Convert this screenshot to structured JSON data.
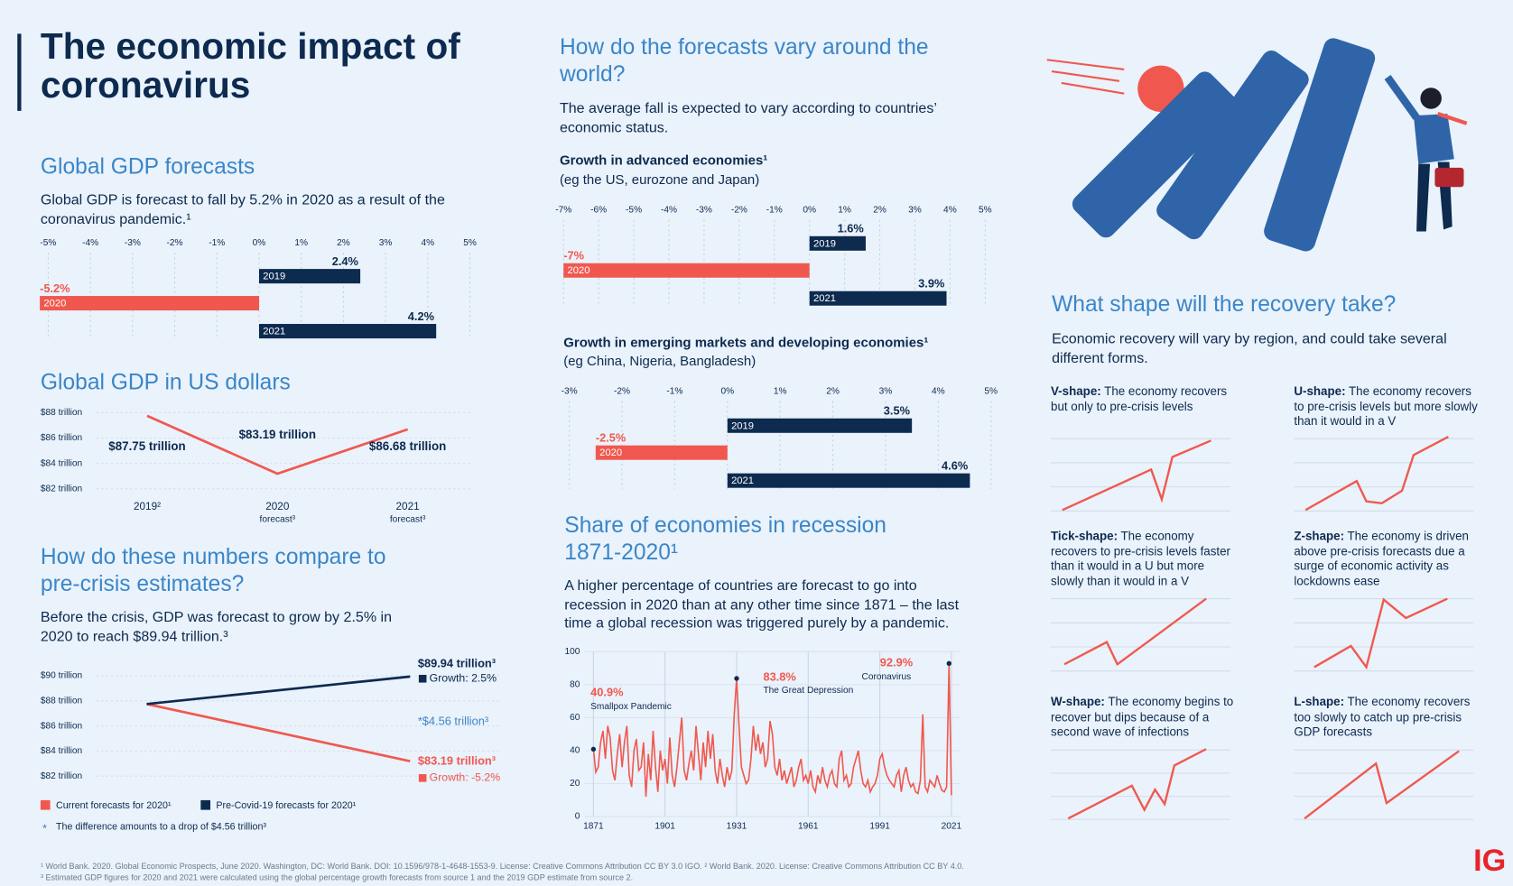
{
  "title": "The economic impact of coronavirus",
  "world_section": {
    "heading": "How do the forecasts vary around the world?",
    "text": "The average fall is expected to vary according to countries’ economic status."
  },
  "chart_data": [
    {
      "type": "hbar",
      "title": "Global GDP forecasts",
      "subtitle": "Global GDP is forecast to fall by 5.2% in 2020 as a result of the coronavirus pandemic.¹",
      "categories": [
        "2019",
        "2020",
        "2021"
      ],
      "values": [
        2.4,
        -5.2,
        4.2
      ],
      "value_labels": [
        "2.4%",
        "-5.2%",
        "4.2%"
      ],
      "colors": [
        "#0d2a4f",
        "#f0584f",
        "#0d2a4f"
      ],
      "xlim": [
        -5,
        5
      ],
      "xticks": [
        {
          "value": -5,
          "label": "-5%"
        },
        {
          "value": -4,
          "label": "-4%"
        },
        {
          "value": -3,
          "label": "-3%"
        },
        {
          "value": -2,
          "label": "-2%"
        },
        {
          "value": -1,
          "label": "-1%"
        },
        {
          "value": 0,
          "label": "0%"
        },
        {
          "value": 1,
          "label": "1%"
        },
        {
          "value": 2,
          "label": "2%"
        },
        {
          "value": 3,
          "label": "3%"
        },
        {
          "value": 4,
          "label": "4%"
        },
        {
          "value": 5,
          "label": "5%"
        }
      ],
      "grid": true
    },
    {
      "type": "hbar",
      "title": "Growth in advanced economies¹",
      "subtitle": "(eg the US, eurozone and Japan)",
      "categories": [
        "2019",
        "2020",
        "2021"
      ],
      "values": [
        1.6,
        -7,
        3.9
      ],
      "value_labels": [
        "1.6%",
        "-7%",
        "3.9%"
      ],
      "colors": [
        "#0d2a4f",
        "#f0584f",
        "#0d2a4f"
      ],
      "xlim": [
        -7,
        5
      ],
      "xticks": [
        {
          "value": -7,
          "label": "-7%"
        },
        {
          "value": -6,
          "label": "-6%"
        },
        {
          "value": -5,
          "label": "-5%"
        },
        {
          "value": -4,
          "label": "-4%"
        },
        {
          "value": -3,
          "label": "-3%"
        },
        {
          "value": -2,
          "label": "-2%"
        },
        {
          "value": -1,
          "label": "-1%"
        },
        {
          "value": 0,
          "label": "0%"
        },
        {
          "value": 1,
          "label": "1%"
        },
        {
          "value": 2,
          "label": "2%"
        },
        {
          "value": 3,
          "label": "3%"
        },
        {
          "value": 4,
          "label": "4%"
        },
        {
          "value": 5,
          "label": "5%"
        }
      ],
      "grid": true
    },
    {
      "type": "hbar",
      "title": "Growth in emerging markets and developing economies¹",
      "subtitle": "(eg China, Nigeria, Bangladesh)",
      "categories": [
        "2019",
        "2020",
        "2021"
      ],
      "values": [
        3.5,
        -2.5,
        4.6
      ],
      "value_labels": [
        "3.5%",
        "-2.5%",
        "4.6%"
      ],
      "colors": [
        "#0d2a4f",
        "#f0584f",
        "#0d2a4f"
      ],
      "xlim": [
        -3,
        5
      ],
      "xticks": [
        {
          "value": -3,
          "label": "-3%"
        },
        {
          "value": -2,
          "label": "-2%"
        },
        {
          "value": -1,
          "label": "-1%"
        },
        {
          "value": 0,
          "label": "0%"
        },
        {
          "value": 1,
          "label": "1%"
        },
        {
          "value": 2,
          "label": "2%"
        },
        {
          "value": 3,
          "label": "3%"
        },
        {
          "value": 4,
          "label": "4%"
        },
        {
          "value": 5,
          "label": "5%"
        }
      ],
      "grid": true
    },
    {
      "type": "line",
      "title": "Global GDP in US dollars",
      "categories": [
        [
          "2019²"
        ],
        [
          "2020",
          "forecast³"
        ],
        [
          "2021",
          "forecast³"
        ]
      ],
      "values": [
        87.75,
        83.19,
        86.68
      ],
      "value_labels": [
        "$87.75 trillion",
        "$83.19 trillion",
        "$86.68 trillion"
      ],
      "color": "#f0584f",
      "ylim": [
        82,
        88
      ],
      "yticks": [
        {
          "value": 82,
          "label": "$82 trillion"
        },
        {
          "value": 84,
          "label": "$84 trillion"
        },
        {
          "value": 86,
          "label": "$86 trillion"
        },
        {
          "value": 88,
          "label": "$88 trillion"
        }
      ],
      "grid": true
    },
    {
      "type": "compare",
      "title": "How do these numbers compare to pre-crisis estimates?",
      "subtitle": "Before the crisis, GDP was forecast to grow by 2.5% in 2020 to reach $89.94 trillion.³",
      "series": [
        {
          "name": "Current forecasts for 2020¹",
          "color": "#f0584f",
          "values": [
            87.75,
            83.19
          ]
        },
        {
          "name": "Pre-Covid-19 forecasts for 2020¹",
          "color": "#0d2a4f",
          "values": [
            87.75,
            89.94
          ]
        }
      ],
      "annotations": [
        "$89.94 trillion³",
        "Growth: 2.5%",
        "*$4.56 trillion³",
        "$83.19 trillion³",
        "Growth: -5.2%"
      ],
      "note_marker": "*",
      "note": "The difference amounts to a drop of $4.56 trillion³",
      "ylim": [
        82,
        90
      ],
      "yticks": [
        {
          "value": 82,
          "label": "$82 trillion"
        },
        {
          "value": 84,
          "label": "$84 trillion"
        },
        {
          "value": 86,
          "label": "$86 trillion"
        },
        {
          "value": 88,
          "label": "$88 trillion"
        },
        {
          "value": 90,
          "label": "$90 trillion"
        }
      ],
      "grid": true
    },
    {
      "type": "timeline",
      "title": "Share of economies in recession 1871-2020¹",
      "subtitle": "A higher percentage of countries are forecast to go into recession in 2020 than at any other time since 1871 – the last time a global recession was triggered purely by a pandemic.",
      "color": "#f0584f",
      "x": [
        1871,
        1872,
        1873,
        1874,
        1875,
        1876,
        1877,
        1878,
        1879,
        1880,
        1881,
        1882,
        1883,
        1884,
        1885,
        1886,
        1887,
        1888,
        1889,
        1890,
        1891,
        1892,
        1893,
        1894,
        1895,
        1896,
        1897,
        1898,
        1899,
        1900,
        1901,
        1902,
        1903,
        1904,
        1905,
        1906,
        1907,
        1908,
        1909,
        1910,
        1911,
        1912,
        1913,
        1914,
        1915,
        1916,
        1917,
        1918,
        1919,
        1920,
        1921,
        1922,
        1923,
        1924,
        1925,
        1926,
        1927,
        1928,
        1929,
        1930,
        1931,
        1932,
        1933,
        1934,
        1935,
        1936,
        1937,
        1938,
        1939,
        1940,
        1941,
        1942,
        1943,
        1944,
        1945,
        1946,
        1947,
        1948,
        1949,
        1950,
        1951,
        1952,
        1953,
        1954,
        1955,
        1956,
        1957,
        1958,
        1959,
        1960,
        1961,
        1962,
        1963,
        1964,
        1965,
        1966,
        1967,
        1968,
        1969,
        1970,
        1971,
        1972,
        1973,
        1974,
        1975,
        1976,
        1977,
        1978,
        1979,
        1980,
        1981,
        1982,
        1983,
        1984,
        1985,
        1986,
        1987,
        1988,
        1989,
        1990,
        1991,
        1992,
        1993,
        1994,
        1995,
        1996,
        1997,
        1998,
        1999,
        2000,
        2001,
        2002,
        2003,
        2004,
        2005,
        2006,
        2007,
        2008,
        2009,
        2010,
        2011,
        2012,
        2013,
        2014,
        2015,
        2016,
        2017,
        2018,
        2019,
        2020,
        2021
      ],
      "values": [
        40.9,
        27,
        30,
        45,
        52,
        35,
        55,
        48,
        28,
        22,
        38,
        50,
        30,
        45,
        55,
        25,
        18,
        40,
        47,
        28,
        30,
        45,
        12,
        38,
        22,
        52,
        30,
        15,
        40,
        28,
        35,
        20,
        48,
        25,
        18,
        30,
        45,
        60,
        28,
        22,
        32,
        40,
        28,
        55,
        38,
        22,
        45,
        30,
        52,
        35,
        50,
        28,
        20,
        35,
        25,
        18,
        30,
        22,
        28,
        62,
        83.8,
        55,
        30,
        25,
        20,
        22,
        35,
        55,
        40,
        50,
        38,
        45,
        30,
        35,
        58,
        50,
        30,
        25,
        35,
        22,
        28,
        20,
        25,
        30,
        18,
        22,
        30,
        35,
        22,
        25,
        20,
        28,
        18,
        15,
        25,
        20,
        30,
        22,
        18,
        25,
        28,
        20,
        18,
        35,
        40,
        22,
        25,
        18,
        20,
        30,
        35,
        40,
        28,
        20,
        18,
        22,
        15,
        18,
        20,
        25,
        35,
        38,
        30,
        25,
        22,
        20,
        18,
        25,
        28,
        15,
        25,
        30,
        22,
        18,
        20,
        15,
        14,
        22,
        62,
        18,
        15,
        22,
        20,
        18,
        25,
        20,
        16,
        15,
        18,
        92.9,
        13
      ],
      "annotations": [
        {
          "value_label": "40.9%",
          "text": "Smallpox Pandemic"
        },
        {
          "value_label": "83.8%",
          "text": "The Great Depression"
        },
        {
          "value_label": "92.9%",
          "text": "Coronavirus"
        }
      ],
      "xlim": [
        1871,
        2021
      ],
      "xticks": [
        1871,
        1901,
        1931,
        1961,
        1991,
        2021
      ],
      "ylim": [
        0,
        100
      ],
      "yticks": [
        0,
        20,
        40,
        60,
        80,
        100
      ],
      "grid": true
    }
  ],
  "recovery": {
    "heading": "What shape will the recovery take?",
    "text": "Economic recovery will vary by region, and could take several different forms.",
    "shapes": [
      {
        "name": "V-shape:",
        "text": "The economy recovers but only to pre-crisis levels"
      },
      {
        "name": "U-shape:",
        "text": "The economy recovers to pre-crisis levels but more slowly than it would in a V"
      },
      {
        "name": "Tick-shape:",
        "text": "The economy recovers to pre-crisis levels faster than it would in a U but more slowly than it would in a V"
      },
      {
        "name": "Z-shape:",
        "text": "The economy is driven above pre-crisis forecasts due a surge of economic activity as lockdowns ease"
      },
      {
        "name": "W-shape:",
        "text": "The economy begins to recover but dips because of a second wave of infections"
      },
      {
        "name": "L-shape:",
        "text": "The economy recovers too slowly to catch up pre-crisis GDP forecasts"
      }
    ]
  },
  "footnotes": [
    "¹ World Bank. 2020. Global Economic Prospects, June 2020. Washington, DC: World Bank. DOI: 10.1596/978-1-4648-1553-9. License: Creative Commons Attribution CC BY 3.0 IGO. ² World Bank. 2020. License: Creative Commons Attribution CC BY 4.0.",
    "³ Estimated GDP figures for 2020 and 2021 were calculated using the global percentage growth forecasts from source 1 and the 2019 GDP estimate from source 2."
  ],
  "logo": "IG"
}
